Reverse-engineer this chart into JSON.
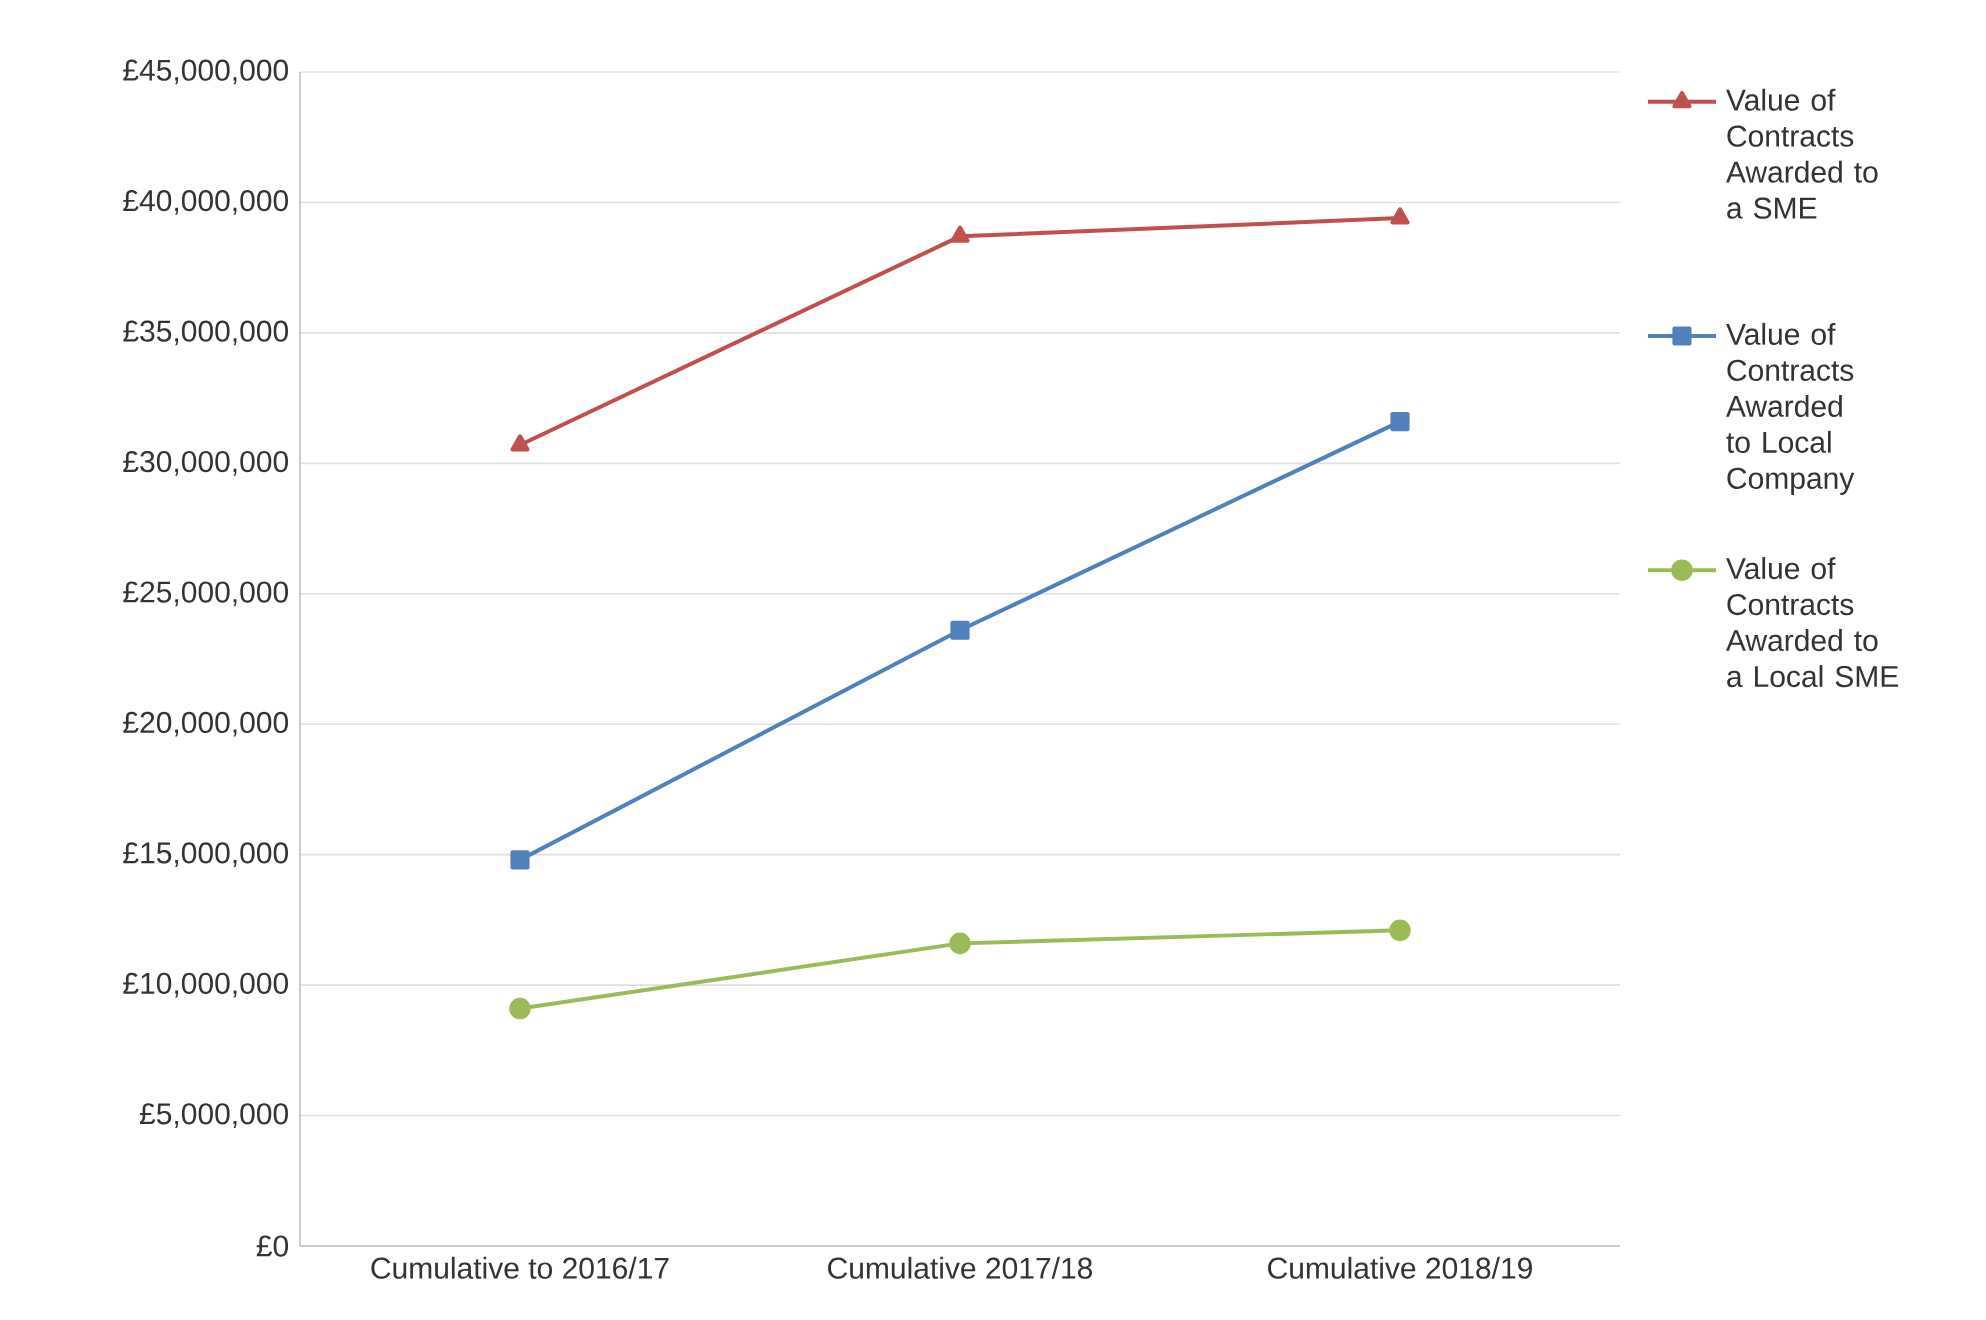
{
  "chart_data": {
    "type": "line",
    "categories": [
      "Cumulative to 2016/17",
      "Cumulative 2017/18",
      "Cumulative 2018/19"
    ],
    "series": [
      {
        "name": "Value of Contracts Awarded to a SME",
        "color": "#c0504d",
        "marker": "triangle",
        "values": [
          30700000,
          38700000,
          39400000
        ]
      },
      {
        "name": "Value of Contracts Awarded to Local Company",
        "color": "#4f81bd",
        "marker": "square",
        "values": [
          14800000,
          23600000,
          31600000
        ]
      },
      {
        "name": "Value of Contracts Awarded to a Local SME",
        "color": "#9bbb59",
        "marker": "circle",
        "values": [
          9100000,
          11600000,
          12100000
        ]
      }
    ],
    "ylim": [
      0,
      45000000
    ],
    "yticks": [
      {
        "value": 0,
        "label": "£0"
      },
      {
        "value": 5000000,
        "label": "£5,000,000"
      },
      {
        "value": 10000000,
        "label": "£10,000,000"
      },
      {
        "value": 15000000,
        "label": "£15,000,000"
      },
      {
        "value": 20000000,
        "label": "£20,000,000"
      },
      {
        "value": 25000000,
        "label": "£25,000,000"
      },
      {
        "value": 30000000,
        "label": "£30,000,000"
      },
      {
        "value": 35000000,
        "label": "£35,000,000"
      },
      {
        "value": 40000000,
        "label": "£40,000,000"
      },
      {
        "value": 45000000,
        "label": "£45,000,000"
      }
    ],
    "grid": "y",
    "legend": "right",
    "line_style": "solid"
  }
}
